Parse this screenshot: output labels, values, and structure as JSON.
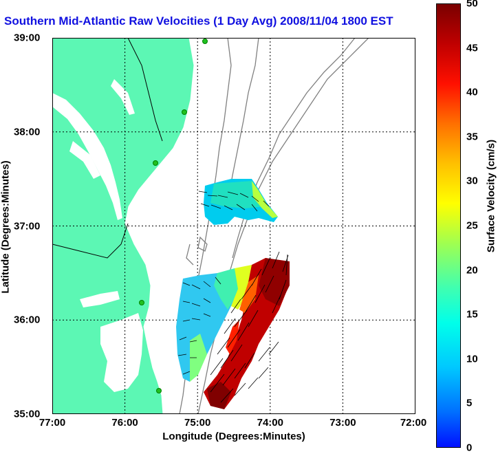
{
  "title": "Southern Mid-Atlantic Raw Velocities (1 Day Avg) 2008/11/04 1800 EST",
  "x_axis": {
    "label": "Longitude (Degrees:Minutes)",
    "ticks": [
      "77:00",
      "76:00",
      "75:00",
      "74:00",
      "73:00",
      "72:00"
    ]
  },
  "y_axis": {
    "label": "Latitude (Degrees:Minutes)",
    "ticks": [
      "39:00",
      "38:00",
      "37:00",
      "36:00",
      "35:00"
    ]
  },
  "colorbar": {
    "label": "Surface Velocity (cm/s)",
    "ticks": [
      "50",
      "45",
      "40",
      "35",
      "30",
      "25",
      "20",
      "15",
      "10",
      "5",
      "0"
    ],
    "range": [
      0,
      50
    ],
    "colors": {
      "land": "#5cf7b4",
      "contour": "#808080",
      "low": "#0010ff",
      "high": "#7a0000"
    }
  },
  "map": {
    "lon_range": [
      "77:00",
      "72:00"
    ],
    "lat_range": [
      "35:00",
      "39:00"
    ],
    "grid": true,
    "stations": 5
  }
}
